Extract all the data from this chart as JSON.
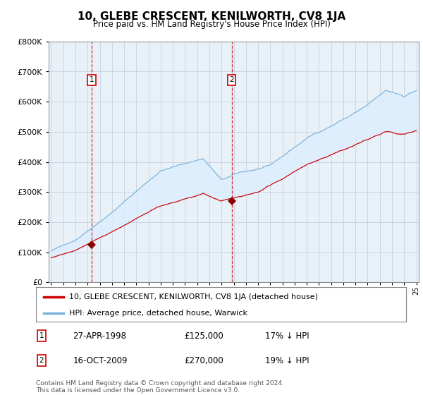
{
  "title": "10, GLEBE CRESCENT, KENILWORTH, CV8 1JA",
  "subtitle": "Price paid vs. HM Land Registry's House Price Index (HPI)",
  "legend_line1": "10, GLEBE CRESCENT, KENILWORTH, CV8 1JA (detached house)",
  "legend_line2": "HPI: Average price, detached house, Warwick",
  "transaction1_date": "27-APR-1998",
  "transaction1_price": 125000,
  "transaction1_label": "17% ↓ HPI",
  "transaction2_date": "16-OCT-2009",
  "transaction2_price": 270000,
  "transaction2_label": "19% ↓ HPI",
  "footer": "Contains HM Land Registry data © Crown copyright and database right 2024.\nThis data is licensed under the Open Government Licence v3.0.",
  "hpi_color": "#7ab4d8",
  "price_color": "#cc0000",
  "marker_color": "#8b0000",
  "vline_color": "#cc0000",
  "fill_color": "#ddeeff",
  "plot_bg_color": "#e8f0f8",
  "grid_color": "#c0c8d8",
  "x_start_year": 1995,
  "x_end_year": 2025,
  "ylim_max": 800000,
  "seed": 42,
  "year_t1": 1998.33,
  "year_t2": 2009.83,
  "val_t1": 125000,
  "val_t2": 270000
}
